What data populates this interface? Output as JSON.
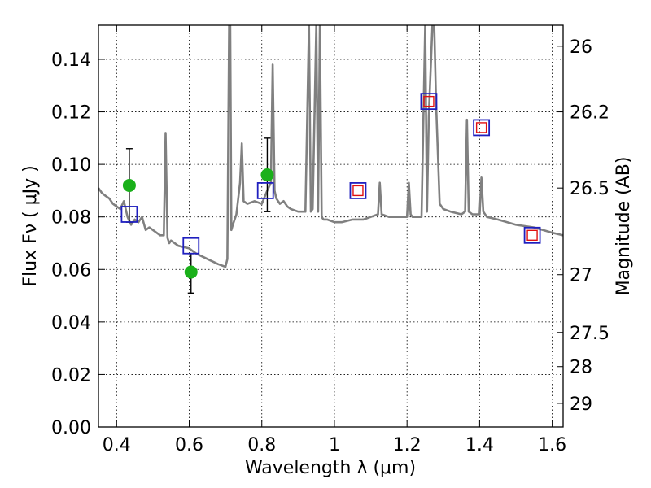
{
  "chart_data": {
    "type": "scatter",
    "xlabel": "Wavelength  λ (μm)",
    "ylabel_left": "Flux  Fν  ( μJy )",
    "ylabel_right": "Magnitude (AB)",
    "xlim": [
      0.35,
      1.63
    ],
    "ylim": [
      0.0,
      0.153
    ],
    "grid": true,
    "x_ticks": [
      {
        "value": 0.4,
        "label": "0.4"
      },
      {
        "value": 0.6,
        "label": "0.6"
      },
      {
        "value": 0.8,
        "label": "0.8"
      },
      {
        "value": 1.0,
        "label": "1"
      },
      {
        "value": 1.2,
        "label": "1.2"
      },
      {
        "value": 1.4,
        "label": "1.4"
      },
      {
        "value": 1.6,
        "label": "1.6"
      }
    ],
    "y_ticks": [
      {
        "value": 0.0,
        "label": "0.00"
      },
      {
        "value": 0.02,
        "label": "0.02"
      },
      {
        "value": 0.04,
        "label": "0.04"
      },
      {
        "value": 0.06,
        "label": "0.06"
      },
      {
        "value": 0.08,
        "label": "0.08"
      },
      {
        "value": 0.1,
        "label": "0.10"
      },
      {
        "value": 0.12,
        "label": "0.12"
      },
      {
        "value": 0.14,
        "label": "0.14"
      }
    ],
    "right_ticks": [
      {
        "flux": 0.145,
        "label": "26"
      },
      {
        "flux": 0.12,
        "label": "26.2"
      },
      {
        "flux": 0.091,
        "label": "26.5"
      },
      {
        "flux": 0.058,
        "label": "27"
      },
      {
        "flux": 0.036,
        "label": "27.5"
      },
      {
        "flux": 0.023,
        "label": "28"
      },
      {
        "flux": 0.009,
        "label": "29"
      }
    ],
    "series": [
      {
        "name": "model spectrum",
        "kind": "line",
        "color": "#808080",
        "x": [
          0.35,
          0.36,
          0.37,
          0.38,
          0.39,
          0.4,
          0.41,
          0.42,
          0.43,
          0.44,
          0.45,
          0.46,
          0.47,
          0.48,
          0.49,
          0.5,
          0.51,
          0.52,
          0.53,
          0.535,
          0.54,
          0.545,
          0.55,
          0.57,
          0.6,
          0.62,
          0.65,
          0.68,
          0.7,
          0.705,
          0.71,
          0.713,
          0.716,
          0.72,
          0.73,
          0.74,
          0.745,
          0.75,
          0.76,
          0.78,
          0.8,
          0.815,
          0.825,
          0.83,
          0.835,
          0.84,
          0.85,
          0.86,
          0.87,
          0.88,
          0.9,
          0.92,
          0.93,
          0.935,
          0.94,
          0.95,
          0.955,
          0.96,
          0.965,
          0.97,
          0.98,
          1.0,
          1.02,
          1.05,
          1.08,
          1.1,
          1.12,
          1.125,
          1.13,
          1.15,
          1.2,
          1.205,
          1.21,
          1.215,
          1.22,
          1.24,
          1.25,
          1.255,
          1.26,
          1.27,
          1.275,
          1.28,
          1.29,
          1.3,
          1.32,
          1.35,
          1.36,
          1.365,
          1.37,
          1.38,
          1.4,
          1.405,
          1.41,
          1.42,
          1.45,
          1.5,
          1.55,
          1.6,
          1.63
        ],
        "y": [
          0.091,
          0.089,
          0.088,
          0.087,
          0.085,
          0.084,
          0.083,
          0.086,
          0.08,
          0.077,
          0.079,
          0.078,
          0.08,
          0.075,
          0.076,
          0.075,
          0.074,
          0.073,
          0.073,
          0.112,
          0.072,
          0.07,
          0.071,
          0.069,
          0.068,
          0.066,
          0.064,
          0.062,
          0.061,
          0.064,
          0.153,
          0.153,
          0.075,
          0.077,
          0.081,
          0.093,
          0.108,
          0.086,
          0.085,
          0.086,
          0.085,
          0.09,
          0.093,
          0.138,
          0.09,
          0.087,
          0.085,
          0.086,
          0.084,
          0.083,
          0.082,
          0.082,
          0.153,
          0.082,
          0.083,
          0.153,
          0.082,
          0.153,
          0.08,
          0.079,
          0.079,
          0.078,
          0.078,
          0.079,
          0.079,
          0.08,
          0.081,
          0.093,
          0.081,
          0.08,
          0.08,
          0.093,
          0.081,
          0.08,
          0.08,
          0.08,
          0.153,
          0.082,
          0.118,
          0.153,
          0.153,
          0.123,
          0.085,
          0.083,
          0.082,
          0.081,
          0.082,
          0.117,
          0.082,
          0.081,
          0.081,
          0.095,
          0.082,
          0.08,
          0.079,
          0.077,
          0.076,
          0.074,
          0.073
        ]
      },
      {
        "name": "observed photometry",
        "kind": "points",
        "color": "#1ab01a",
        "error_color": "#000000",
        "x": [
          0.435,
          0.605,
          0.815
        ],
        "y": [
          0.092,
          0.059,
          0.096
        ],
        "yerr_low": [
          0.078,
          0.051,
          0.082
        ],
        "yerr_high": [
          0.106,
          0.066,
          0.11
        ]
      },
      {
        "name": "model band fluxes",
        "kind": "open-squares",
        "color": "#1f1fbf",
        "x": [
          0.435,
          0.605,
          0.81,
          1.065,
          1.26,
          1.405,
          1.545
        ],
        "y": [
          0.081,
          0.069,
          0.09,
          0.09,
          0.124,
          0.114,
          0.073
        ]
      },
      {
        "name": "model band fluxes (NIR)",
        "kind": "open-squares-small",
        "color": "#e01010",
        "x": [
          1.065,
          1.26,
          1.405,
          1.545
        ],
        "y": [
          0.09,
          0.124,
          0.114,
          0.073
        ]
      }
    ]
  }
}
